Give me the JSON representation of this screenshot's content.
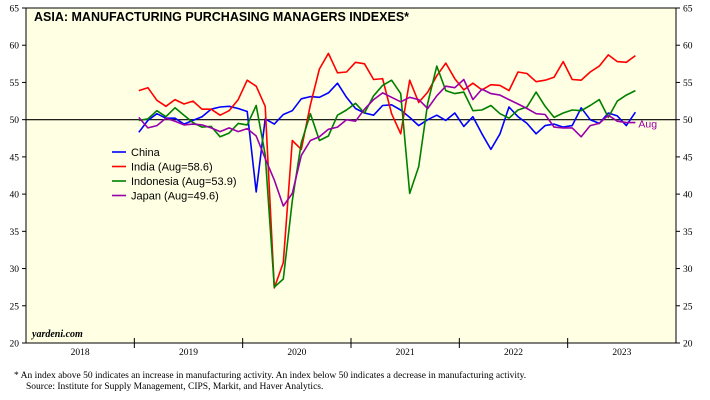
{
  "chart_data": {
    "type": "line",
    "title": "ASIA: MANUFACTURING PURCHASING MANAGERS INDEXES*",
    "x_start": "2019-01",
    "x_end": "2023-08",
    "frequency": "monthly",
    "x_tick_labels": [
      "2018",
      "2019",
      "2020",
      "2021",
      "2022",
      "2023"
    ],
    "xlim": [
      "2018-01",
      "2023-12"
    ],
    "ylim": [
      20,
      65
    ],
    "y_ticks": [
      20,
      25,
      30,
      35,
      40,
      45,
      50,
      55,
      60,
      65
    ],
    "reference_line": 50,
    "legend_placement": "center-left",
    "annotation": "Aug",
    "series": [
      {
        "name": "China",
        "color": "#0000ff",
        "values": [
          48.3,
          49.9,
          50.8,
          50.2,
          50.2,
          49.4,
          49.9,
          50.4,
          51.4,
          51.7,
          51.8,
          51.5,
          51.1,
          40.3,
          50.1,
          49.4,
          50.7,
          51.2,
          52.8,
          53.1,
          53.0,
          53.6,
          54.9,
          53.0,
          51.5,
          50.9,
          50.6,
          51.9,
          52.0,
          51.3,
          50.3,
          49.2,
          50.0,
          50.6,
          49.9,
          50.9,
          49.1,
          50.4,
          48.1,
          46.0,
          48.1,
          51.7,
          50.4,
          49.5,
          48.1,
          49.2,
          49.4,
          49.0,
          49.2,
          51.6,
          50.0,
          49.5,
          50.9,
          50.5,
          49.2,
          51.0
        ]
      },
      {
        "name": "India (Aug=58.6)",
        "color": "#ff0000",
        "values": [
          53.9,
          54.3,
          52.6,
          51.8,
          52.7,
          52.1,
          52.5,
          51.4,
          51.4,
          50.6,
          51.2,
          52.7,
          55.3,
          54.5,
          51.8,
          27.4,
          30.8,
          47.2,
          46.0,
          52.0,
          56.8,
          58.9,
          56.3,
          56.4,
          57.7,
          57.5,
          55.4,
          55.5,
          50.8,
          48.1,
          55.3,
          52.3,
          53.7,
          55.9,
          57.6,
          55.5,
          54.0,
          54.9,
          54.0,
          54.7,
          54.6,
          53.9,
          56.4,
          56.2,
          55.1,
          55.3,
          55.7,
          57.8,
          55.4,
          55.3,
          56.4,
          57.2,
          58.7,
          57.8,
          57.7,
          58.6
        ]
      },
      {
        "name": "Indonesia (Aug=53.9)",
        "color": "#008000",
        "values": [
          49.9,
          50.1,
          51.2,
          50.4,
          51.6,
          50.6,
          49.6,
          49.0,
          49.1,
          47.7,
          48.2,
          49.5,
          49.3,
          51.9,
          45.3,
          27.5,
          28.6,
          39.1,
          46.9,
          50.8,
          47.2,
          47.8,
          50.6,
          51.3,
          52.2,
          50.9,
          53.2,
          54.6,
          55.3,
          53.5,
          40.1,
          43.7,
          52.2,
          57.2,
          53.9,
          53.5,
          53.7,
          51.2,
          51.3,
          51.9,
          50.8,
          50.2,
          51.3,
          51.7,
          53.7,
          51.8,
          50.3,
          50.9,
          51.3,
          51.2,
          51.9,
          52.7,
          50.3,
          52.5,
          53.3,
          53.9
        ]
      },
      {
        "name": "Japan (Aug=49.6)",
        "color": "#9900aa",
        "values": [
          50.3,
          48.9,
          49.2,
          50.2,
          49.8,
          49.3,
          49.4,
          49.3,
          48.9,
          48.4,
          48.9,
          48.4,
          48.8,
          47.8,
          44.8,
          41.9,
          38.4,
          40.1,
          45.2,
          47.2,
          47.7,
          48.7,
          49.0,
          50.0,
          49.8,
          51.4,
          52.7,
          53.6,
          53.0,
          52.4,
          53.0,
          52.7,
          51.5,
          53.2,
          54.5,
          54.3,
          55.4,
          52.7,
          54.1,
          53.5,
          53.3,
          52.7,
          52.1,
          51.5,
          50.8,
          50.7,
          49.0,
          48.9,
          48.9,
          47.7,
          49.2,
          49.5,
          50.6,
          49.8,
          49.6,
          49.6
        ]
      }
    ]
  },
  "watermark": "yardeni.com",
  "footnote": "*  An index above 50 indicates an increase in manufacturing activity. An index below 50 indicates a decrease in manufacturing activity.",
  "source": "Source: Institute for Supply Management, CIPS, Markit, and Haver Analytics."
}
